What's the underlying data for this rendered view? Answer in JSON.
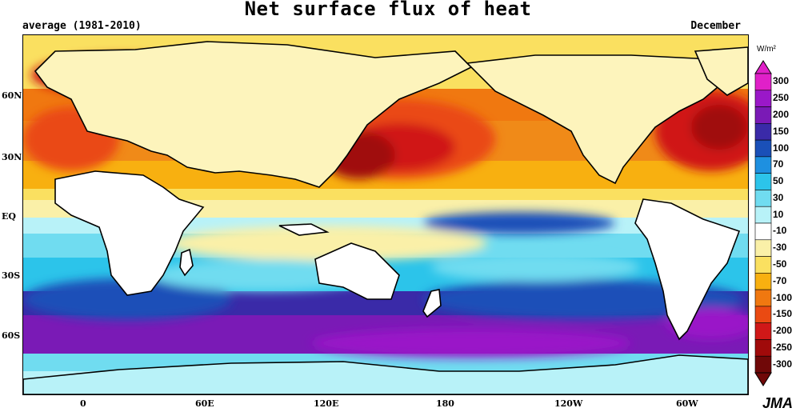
{
  "title": "Net surface flux of heat",
  "subtitle_left": "average (1981-2010)",
  "subtitle_right": "December",
  "unit": "W/m²",
  "credit": "JMA",
  "lat_labels": [
    "60N",
    "30N",
    "EQ",
    "30S",
    "60S"
  ],
  "lon_labels": [
    "0",
    "60E",
    "120E",
    "180",
    "120W",
    "60W"
  ],
  "colorbar": {
    "labels": [
      "300",
      "250",
      "200",
      "150",
      "100",
      "70",
      "50",
      "30",
      "10",
      "-10",
      "-30",
      "-50",
      "-70",
      "-100",
      "-150",
      "-200",
      "-250",
      "-300"
    ],
    "colors": [
      "#e020c8",
      "#9a18c8",
      "#7a1ab6",
      "#3a2aa8",
      "#1a50b8",
      "#1e90e0",
      "#2cc4ea",
      "#70dcf0",
      "#b8f2f8",
      "#ffffff",
      "#faf0a8",
      "#fae060",
      "#f8b010",
      "#f07810",
      "#ea4a12",
      "#d01818",
      "#a00a0a",
      "#700808"
    ]
  },
  "legend_colors": {
    "land": "#ffffff",
    "coast": "#000000"
  }
}
